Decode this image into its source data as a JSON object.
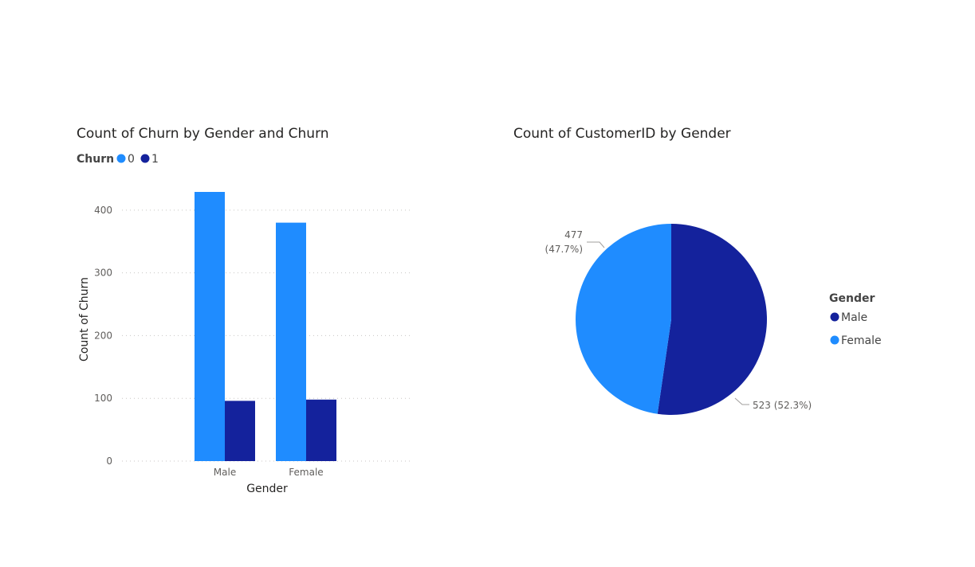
{
  "chart_data": [
    {
      "type": "bar",
      "title": "Count of Churn by Gender and Churn",
      "legend_title": "Churn",
      "categories": [
        "Male",
        "Female"
      ],
      "series": [
        {
          "name": "0",
          "values": [
            429,
            380
          ],
          "color": "#1f8cff"
        },
        {
          "name": "1",
          "values": [
            96,
            98
          ],
          "color": "#14229c"
        }
      ],
      "xlabel": "Gender",
      "ylabel": "Count of Churn",
      "ylim": [
        0,
        429
      ],
      "yticks": [
        0,
        100,
        200,
        300,
        400
      ],
      "grid": true,
      "legend_position": "top-left"
    },
    {
      "type": "pie",
      "title": "Count of CustomerID by Gender",
      "legend_title": "Gender",
      "slices": [
        {
          "label": "Male",
          "value": 523,
          "percent": "52.3%",
          "color": "#14229c",
          "data_label": "523 (52.3%)"
        },
        {
          "label": "Female",
          "value": 477,
          "percent": "47.7%",
          "color": "#1f8cff",
          "data_label_value": "477",
          "data_label_percent": "(47.7%)"
        }
      ],
      "legend_position": "right"
    }
  ]
}
